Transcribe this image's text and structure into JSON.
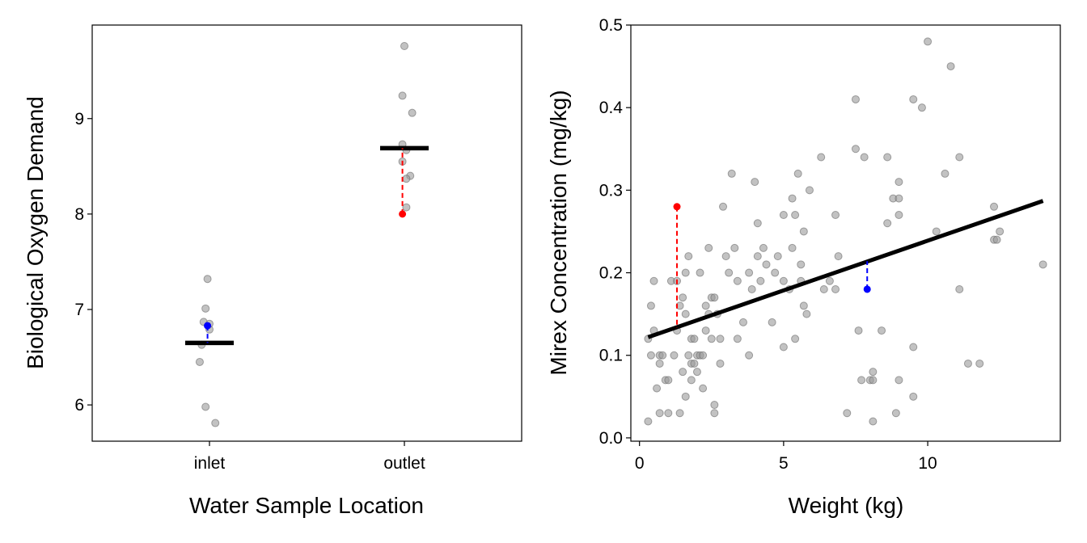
{
  "chart_data": [
    {
      "type": "scatter",
      "xlabel": "Water Sample Location",
      "ylabel": "Biological Oxygen Demand",
      "categories": [
        "inlet",
        "outlet"
      ],
      "yticks": [
        6,
        7,
        8,
        9
      ],
      "ylim": [
        5.62,
        9.98
      ],
      "grid": false,
      "points": [
        {
          "category": "inlet",
          "y": 7.32,
          "jitter": -0.01
        },
        {
          "category": "inlet",
          "y": 7.01,
          "jitter": -0.02
        },
        {
          "category": "inlet",
          "y": 6.87,
          "jitter": -0.03
        },
        {
          "category": "inlet",
          "y": 6.85,
          "jitter": 0.0
        },
        {
          "category": "inlet",
          "y": 6.79,
          "jitter": 0.0
        },
        {
          "category": "inlet",
          "y": 6.63,
          "jitter": -0.04
        },
        {
          "category": "inlet",
          "y": 6.45,
          "jitter": -0.05
        },
        {
          "category": "inlet",
          "y": 5.98,
          "jitter": -0.02
        },
        {
          "category": "inlet",
          "y": 5.81,
          "jitter": 0.03
        },
        {
          "category": "outlet",
          "y": 9.76,
          "jitter": 0.0
        },
        {
          "category": "outlet",
          "y": 9.24,
          "jitter": -0.01
        },
        {
          "category": "outlet",
          "y": 9.06,
          "jitter": 0.04
        },
        {
          "category": "outlet",
          "y": 8.73,
          "jitter": -0.01
        },
        {
          "category": "outlet",
          "y": 8.67,
          "jitter": 0.01
        },
        {
          "category": "outlet",
          "y": 8.55,
          "jitter": -0.01
        },
        {
          "category": "outlet",
          "y": 8.4,
          "jitter": 0.03
        },
        {
          "category": "outlet",
          "y": 8.37,
          "jitter": 0.01
        },
        {
          "category": "outlet",
          "y": 8.07,
          "jitter": 0.01
        }
      ],
      "group_means": [
        {
          "category": "inlet",
          "y": 6.65
        },
        {
          "category": "outlet",
          "y": 8.69
        }
      ],
      "highlighted": [
        {
          "category": "inlet",
          "y": 6.83,
          "jitter": -0.01,
          "color": "#0000ff",
          "residual_to": 6.65
        },
        {
          "category": "outlet",
          "y": 8.0,
          "jitter": -0.01,
          "color": "#ff0000",
          "residual_to": 8.69
        }
      ]
    },
    {
      "type": "scatter",
      "xlabel": "Weight (kg)",
      "ylabel": "Mirex Concentration (mg/kg)",
      "xticks": [
        0,
        5,
        10
      ],
      "yticks": [
        "0.0",
        "0.1",
        "0.2",
        "0.3",
        "0.4",
        "0.5"
      ],
      "xlim": [
        -0.3,
        14.6
      ],
      "ylim": [
        -0.004,
        0.5
      ],
      "grid": false,
      "points": [
        [
          0.3,
          0.02
        ],
        [
          0.3,
          0.12
        ],
        [
          0.4,
          0.1
        ],
        [
          0.4,
          0.16
        ],
        [
          0.5,
          0.19
        ],
        [
          0.5,
          0.13
        ],
        [
          0.6,
          0.06
        ],
        [
          0.7,
          0.1
        ],
        [
          0.7,
          0.09
        ],
        [
          0.8,
          0.1
        ],
        [
          0.7,
          0.03
        ],
        [
          0.9,
          0.07
        ],
        [
          1.0,
          0.07
        ],
        [
          1.0,
          0.03
        ],
        [
          1.1,
          0.19
        ],
        [
          1.2,
          0.1
        ],
        [
          1.3,
          0.19
        ],
        [
          1.3,
          0.13
        ],
        [
          1.4,
          0.16
        ],
        [
          1.4,
          0.03
        ],
        [
          1.5,
          0.17
        ],
        [
          1.5,
          0.08
        ],
        [
          1.6,
          0.2
        ],
        [
          1.6,
          0.15
        ],
        [
          1.6,
          0.05
        ],
        [
          1.7,
          0.22
        ],
        [
          1.7,
          0.1
        ],
        [
          1.8,
          0.12
        ],
        [
          1.8,
          0.09
        ],
        [
          1.8,
          0.07
        ],
        [
          1.9,
          0.12
        ],
        [
          1.9,
          0.09
        ],
        [
          2.0,
          0.1
        ],
        [
          2.0,
          0.08
        ],
        [
          2.1,
          0.2
        ],
        [
          2.1,
          0.1
        ],
        [
          2.2,
          0.06
        ],
        [
          2.2,
          0.1
        ],
        [
          2.3,
          0.16
        ],
        [
          2.3,
          0.13
        ],
        [
          2.4,
          0.23
        ],
        [
          2.4,
          0.15
        ],
        [
          2.5,
          0.17
        ],
        [
          2.5,
          0.12
        ],
        [
          2.6,
          0.17
        ],
        [
          2.6,
          0.04
        ],
        [
          2.6,
          0.03
        ],
        [
          2.7,
          0.15
        ],
        [
          2.8,
          0.12
        ],
        [
          2.8,
          0.09
        ],
        [
          2.9,
          0.28
        ],
        [
          3.0,
          0.22
        ],
        [
          3.1,
          0.2
        ],
        [
          3.2,
          0.32
        ],
        [
          3.3,
          0.23
        ],
        [
          3.4,
          0.12
        ],
        [
          3.4,
          0.19
        ],
        [
          3.6,
          0.14
        ],
        [
          3.8,
          0.2
        ],
        [
          3.8,
          0.1
        ],
        [
          3.9,
          0.18
        ],
        [
          4.0,
          0.31
        ],
        [
          4.1,
          0.26
        ],
        [
          4.1,
          0.22
        ],
        [
          4.2,
          0.19
        ],
        [
          4.3,
          0.23
        ],
        [
          4.4,
          0.21
        ],
        [
          4.6,
          0.14
        ],
        [
          4.7,
          0.2
        ],
        [
          4.8,
          0.22
        ],
        [
          5.0,
          0.27
        ],
        [
          5.0,
          0.19
        ],
        [
          5.0,
          0.11
        ],
        [
          5.2,
          0.18
        ],
        [
          5.3,
          0.23
        ],
        [
          5.3,
          0.29
        ],
        [
          5.4,
          0.27
        ],
        [
          5.4,
          0.12
        ],
        [
          5.5,
          0.32
        ],
        [
          5.6,
          0.21
        ],
        [
          5.6,
          0.19
        ],
        [
          5.7,
          0.25
        ],
        [
          5.7,
          0.16
        ],
        [
          5.8,
          0.15
        ],
        [
          5.9,
          0.3
        ],
        [
          6.3,
          0.34
        ],
        [
          6.4,
          0.18
        ],
        [
          6.6,
          0.19
        ],
        [
          6.8,
          0.18
        ],
        [
          6.8,
          0.27
        ],
        [
          6.9,
          0.22
        ],
        [
          7.2,
          0.03
        ],
        [
          7.5,
          0.41
        ],
        [
          7.5,
          0.35
        ],
        [
          7.6,
          0.13
        ],
        [
          7.7,
          0.07
        ],
        [
          7.8,
          0.34
        ],
        [
          8.0,
          0.07
        ],
        [
          8.1,
          0.08
        ],
        [
          8.1,
          0.07
        ],
        [
          8.1,
          0.02
        ],
        [
          8.4,
          0.13
        ],
        [
          8.6,
          0.34
        ],
        [
          8.6,
          0.26
        ],
        [
          8.8,
          0.29
        ],
        [
          8.9,
          0.03
        ],
        [
          9.0,
          0.07
        ],
        [
          9.0,
          0.31
        ],
        [
          9.0,
          0.29
        ],
        [
          9.0,
          0.27
        ],
        [
          9.5,
          0.41
        ],
        [
          9.5,
          0.11
        ],
        [
          9.5,
          0.05
        ],
        [
          9.8,
          0.4
        ],
        [
          10.0,
          0.48
        ],
        [
          10.3,
          0.25
        ],
        [
          10.6,
          0.32
        ],
        [
          10.8,
          0.45
        ],
        [
          11.1,
          0.34
        ],
        [
          11.1,
          0.18
        ],
        [
          11.4,
          0.09
        ],
        [
          11.8,
          0.09
        ],
        [
          12.3,
          0.28
        ],
        [
          12.3,
          0.24
        ],
        [
          12.4,
          0.24
        ],
        [
          12.5,
          0.25
        ],
        [
          14.0,
          0.21
        ]
      ],
      "regression_line": {
        "x": [
          0.3,
          14.0
        ],
        "y": [
          0.122,
          0.287
        ]
      },
      "highlighted": [
        {
          "x": 1.3,
          "y": 0.28,
          "color": "#ff0000",
          "residual_to": 0.133
        },
        {
          "x": 7.9,
          "y": 0.18,
          "color": "#0000ff",
          "residual_to": 0.214
        }
      ]
    }
  ]
}
